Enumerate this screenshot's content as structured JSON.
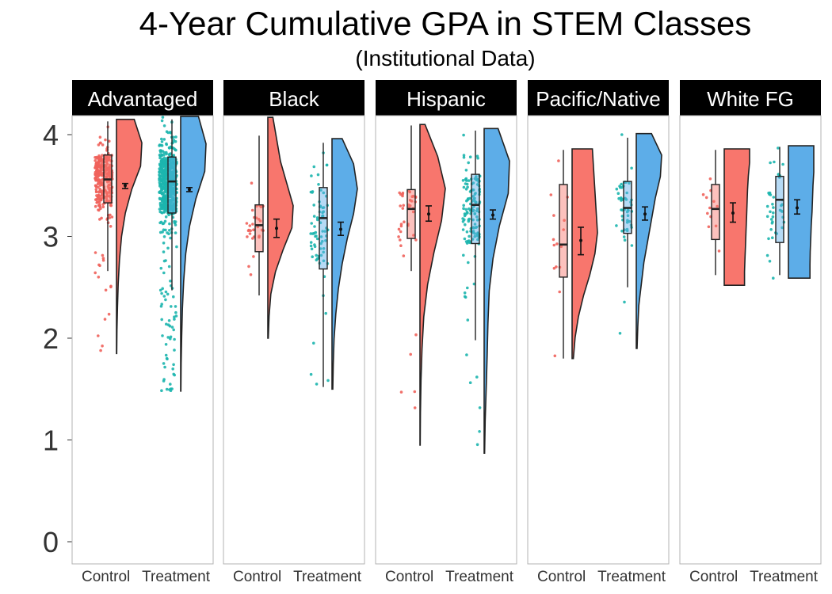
{
  "chart_data": {
    "type": "raincloud",
    "title": "4-Year Cumulative GPA in STEM Classes",
    "subtitle": "(Institutional Data)",
    "xlabel": "",
    "ylabel": "",
    "ylim": [
      0,
      4.2
    ],
    "y_ticks": [
      0,
      1,
      2,
      3,
      4
    ],
    "grid": false,
    "categories": [
      "Control",
      "Treatment"
    ],
    "colors": {
      "Control": {
        "point": "#F0625B",
        "fill": "#F8766D"
      },
      "Treatment": {
        "point": "#1CB5AE",
        "fill": "#5DADE8"
      }
    },
    "panels": [
      {
        "name": "Advantaged",
        "groups": [
          {
            "name": "Control",
            "n_points": 320,
            "box": {
              "whisker_low": 2.66,
              "q1": 3.33,
              "median": 3.56,
              "q3": 3.8,
              "whisker_high": 4.13
            },
            "mean": 3.5,
            "se_low": 3.47,
            "se_high": 3.52,
            "density_range": [
              1.85,
              4.15
            ],
            "density_mode": 3.55,
            "density_widths": [
              0.01,
              0.02,
              0.04,
              0.07,
              0.12,
              0.2,
              0.35,
              0.6,
              0.95,
              1.0,
              0.7
            ]
          },
          {
            "name": "Treatment",
            "n_points": 650,
            "box": {
              "whisker_low": 2.47,
              "q1": 3.23,
              "median": 3.54,
              "q3": 3.78,
              "whisker_high": 4.15
            },
            "mean": 3.46,
            "se_low": 3.44,
            "se_high": 3.48,
            "density_range": [
              1.48,
              4.18
            ],
            "density_mode": 3.6,
            "density_widths": [
              0.01,
              0.02,
              0.04,
              0.07,
              0.12,
              0.2,
              0.35,
              0.6,
              0.95,
              1.0,
              0.7
            ]
          }
        ]
      },
      {
        "name": "Black",
        "groups": [
          {
            "name": "Control",
            "n_points": 30,
            "box": {
              "whisker_low": 2.42,
              "q1": 2.85,
              "median": 3.11,
              "q3": 3.31,
              "whisker_high": 3.99
            },
            "mean": 3.08,
            "se_low": 2.99,
            "se_high": 3.17,
            "density_range": [
              2.0,
              4.17
            ],
            "density_mode": 3.15,
            "density_widths": [
              0.02,
              0.05,
              0.12,
              0.3,
              0.6,
              0.95,
              1.0,
              0.75,
              0.5,
              0.35,
              0.2
            ]
          },
          {
            "name": "Treatment",
            "n_points": 75,
            "box": {
              "whisker_low": 1.52,
              "q1": 2.68,
              "median": 3.18,
              "q3": 3.48,
              "whisker_high": 3.92
            },
            "mean": 3.07,
            "se_low": 3.01,
            "se_high": 3.14,
            "density_range": [
              1.5,
              3.96
            ],
            "density_mode": 3.4,
            "density_widths": [
              0.03,
              0.05,
              0.08,
              0.15,
              0.25,
              0.4,
              0.6,
              0.85,
              1.0,
              0.85,
              0.4
            ]
          }
        ]
      },
      {
        "name": "Hispanic",
        "groups": [
          {
            "name": "Control",
            "n_points": 40,
            "box": {
              "whisker_low": 2.66,
              "q1": 2.98,
              "median": 3.27,
              "q3": 3.46,
              "whisker_high": 4.09
            },
            "mean": 3.22,
            "se_low": 3.15,
            "se_high": 3.3,
            "density_range": [
              0.95,
              4.1
            ],
            "density_mode": 3.3,
            "density_widths": [
              0.01,
              0.02,
              0.04,
              0.08,
              0.15,
              0.3,
              0.55,
              0.85,
              1.0,
              0.7,
              0.2
            ]
          },
          {
            "name": "Treatment",
            "n_points": 140,
            "box": {
              "whisker_low": 1.98,
              "q1": 2.93,
              "median": 3.31,
              "q3": 3.61,
              "whisker_high": 4.04
            },
            "mean": 3.21,
            "se_low": 3.17,
            "se_high": 3.26,
            "density_range": [
              0.87,
              4.06
            ],
            "density_mode": 3.4,
            "density_widths": [
              0.02,
              0.04,
              0.08,
              0.12,
              0.15,
              0.2,
              0.35,
              0.6,
              0.95,
              1.0,
              0.55
            ]
          }
        ]
      },
      {
        "name": "Pacific/Native",
        "groups": [
          {
            "name": "Control",
            "n_points": 15,
            "box": {
              "whisker_low": 1.8,
              "q1": 2.6,
              "median": 2.92,
              "q3": 3.51,
              "whisker_high": 3.85
            },
            "mean": 2.96,
            "se_low": 2.82,
            "se_high": 3.09,
            "density_range": [
              1.8,
              3.86
            ],
            "density_mode": 3.0,
            "density_widths": [
              0.05,
              0.12,
              0.25,
              0.45,
              0.7,
              0.9,
              1.0,
              0.95,
              0.9,
              0.85,
              0.8
            ]
          },
          {
            "name": "Treatment",
            "n_points": 50,
            "box": {
              "whisker_low": 2.5,
              "q1": 3.03,
              "median": 3.28,
              "q3": 3.54,
              "whisker_high": 3.97
            },
            "mean": 3.22,
            "se_low": 3.16,
            "se_high": 3.29,
            "density_range": [
              1.9,
              4.01
            ],
            "density_mode": 3.55,
            "density_widths": [
              0.03,
              0.06,
              0.1,
              0.2,
              0.3,
              0.45,
              0.6,
              0.75,
              0.95,
              1.0,
              0.6
            ]
          }
        ]
      },
      {
        "name": "White FG",
        "groups": [
          {
            "name": "Control",
            "n_points": 12,
            "box": {
              "whisker_low": 2.62,
              "q1": 2.97,
              "median": 3.27,
              "q3": 3.51,
              "whisker_high": 3.85
            },
            "mean": 3.23,
            "se_low": 3.14,
            "se_high": 3.33,
            "density_range": [
              2.52,
              3.86
            ],
            "density_mode": 3.3,
            "density_widths": [
              0.8,
              0.8,
              0.82,
              0.84,
              0.86,
              0.88,
              0.9,
              0.92,
              0.95,
              1.0,
              1.0
            ]
          },
          {
            "name": "Treatment",
            "n_points": 40,
            "box": {
              "whisker_low": 2.62,
              "q1": 2.94,
              "median": 3.36,
              "q3": 3.59,
              "whisker_high": 3.88
            },
            "mean": 3.28,
            "se_low": 3.22,
            "se_high": 3.36,
            "density_range": [
              2.59,
              3.89
            ],
            "density_mode": 3.4,
            "density_widths": [
              0.85,
              0.85,
              0.86,
              0.88,
              0.9,
              0.93,
              0.95,
              0.97,
              1.0,
              1.0,
              1.0
            ]
          }
        ]
      }
    ]
  }
}
